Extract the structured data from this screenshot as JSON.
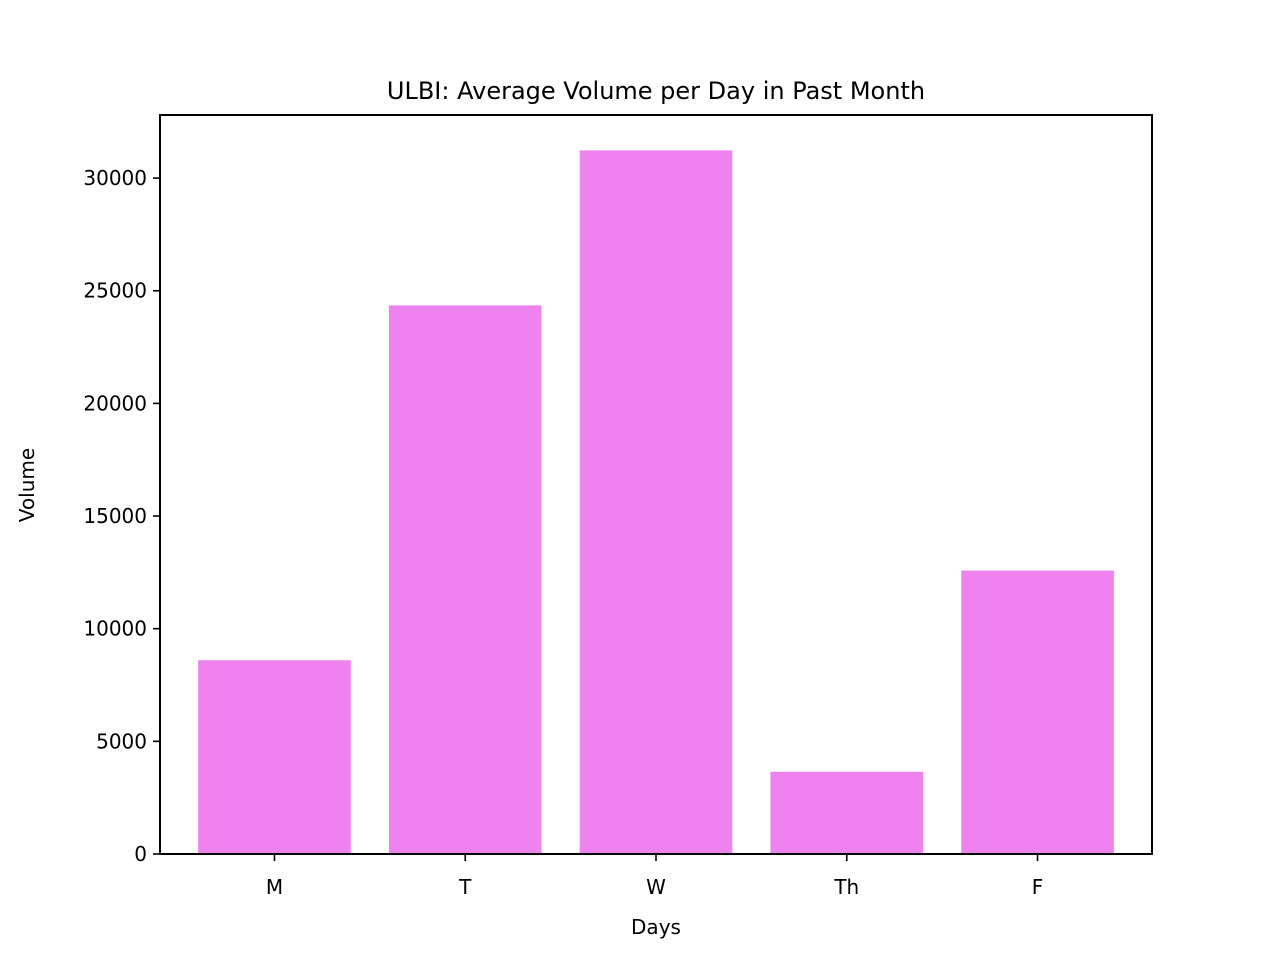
{
  "chart_data": {
    "type": "bar",
    "title": "ULBI: Average Volume per Day in Past Month",
    "xlabel": "Days",
    "ylabel": "Volume",
    "categories": [
      "M",
      "T",
      "W",
      "Th",
      "F"
    ],
    "values": [
      8600,
      24350,
      31230,
      3650,
      12580
    ],
    "ylim": [
      0,
      32800
    ],
    "yticks": [
      0,
      5000,
      10000,
      15000,
      20000,
      25000,
      30000
    ],
    "grid": false,
    "bar_color": "#ee82ee"
  }
}
